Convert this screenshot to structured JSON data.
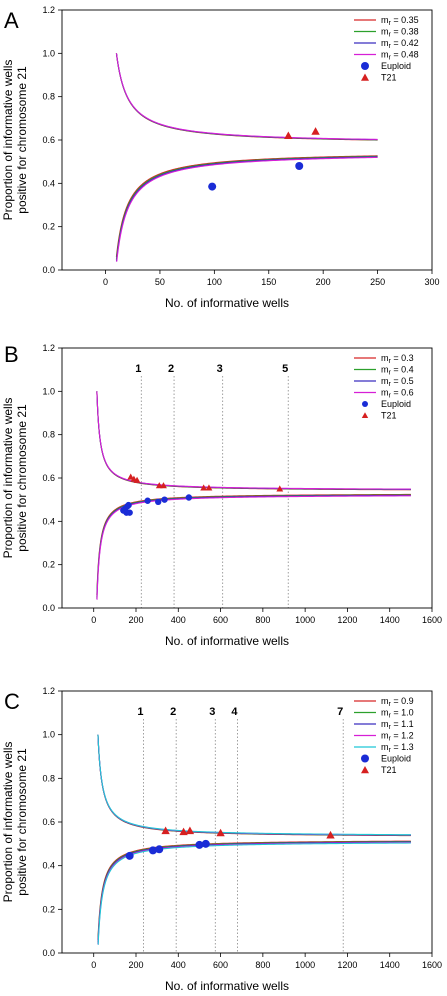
{
  "figure": {
    "background": "#ffffff"
  },
  "chart_data": [
    {
      "panel_label": "A",
      "type": "line",
      "xlabel": "No. of informative wells",
      "ylabel_lines": [
        "Proportion of informative wells",
        "positive for chromosome 21"
      ],
      "xlim": [
        -40,
        300
      ],
      "ylim": [
        0.0,
        1.2
      ],
      "xticks": [
        0,
        50,
        100,
        150,
        200,
        250,
        300
      ],
      "yticks": [
        0.0,
        0.2,
        0.4,
        0.6,
        0.8,
        1.0,
        1.2
      ],
      "curve_x_range": [
        10,
        250
      ],
      "series": [
        {
          "name_main": "m",
          "name_sub": "r",
          "name_rest": " = 0.35",
          "color": "#d62728",
          "mf": 0.35
        },
        {
          "name_main": "m",
          "name_sub": "r",
          "name_rest": " = 0.38",
          "color": "#2ca02c",
          "mf": 0.38
        },
        {
          "name_main": "m",
          "name_sub": "r",
          "name_rest": " = 0.42",
          "color": "#3b2fbf",
          "mf": 0.42
        },
        {
          "name_main": "m",
          "name_sub": "r",
          "name_rest": " = 0.48",
          "color": "#d61fd6",
          "mf": 0.48
        }
      ],
      "euploid_label": "Euploid",
      "t21_label": "T21",
      "euploid_points": [
        [
          98,
          0.385
        ],
        [
          178,
          0.48
        ]
      ],
      "t21_points": [
        [
          168,
          0.62
        ],
        [
          193,
          0.64
        ]
      ],
      "vlines": []
    },
    {
      "panel_label": "B",
      "type": "line",
      "xlabel": "No. of informative wells",
      "ylabel_lines": [
        "Proportion of informative wells",
        "positive for chromosome 21"
      ],
      "xlim": [
        -150,
        1600
      ],
      "ylim": [
        0.0,
        1.2
      ],
      "xticks": [
        0,
        200,
        400,
        600,
        800,
        1000,
        1200,
        1400,
        1600
      ],
      "yticks": [
        0.0,
        0.2,
        0.4,
        0.6,
        0.8,
        1.0,
        1.2
      ],
      "curve_x_range": [
        15,
        1500
      ],
      "series": [
        {
          "name_main": "m",
          "name_sub": "r",
          "name_rest": " = 0.3",
          "color": "#d62728",
          "mf": 0.3
        },
        {
          "name_main": "m",
          "name_sub": "r",
          "name_rest": " = 0.4",
          "color": "#2ca02c",
          "mf": 0.4
        },
        {
          "name_main": "m",
          "name_sub": "r",
          "name_rest": " = 0.5",
          "color": "#3b2fbf",
          "mf": 0.5
        },
        {
          "name_main": "m",
          "name_sub": "r",
          "name_rest": " = 0.6",
          "color": "#d61fd6",
          "mf": 0.6
        }
      ],
      "euploid_label": "Euploid",
      "t21_label": "T21",
      "euploid_points": [
        [
          140,
          0.45
        ],
        [
          150,
          0.46
        ],
        [
          155,
          0.44
        ],
        [
          160,
          0.47
        ],
        [
          165,
          0.475
        ],
        [
          170,
          0.44
        ],
        [
          255,
          0.495
        ],
        [
          305,
          0.49
        ],
        [
          335,
          0.5
        ],
        [
          450,
          0.51
        ]
      ],
      "t21_points": [
        [
          175,
          0.605
        ],
        [
          190,
          0.595
        ],
        [
          205,
          0.59
        ],
        [
          310,
          0.565
        ],
        [
          330,
          0.565
        ],
        [
          520,
          0.555
        ],
        [
          545,
          0.555
        ],
        [
          880,
          0.55
        ]
      ],
      "vlines": [
        {
          "x": 225,
          "label": "1"
        },
        {
          "x": 380,
          "label": "2"
        },
        {
          "x": 610,
          "label": "3"
        },
        {
          "x": 920,
          "label": "5"
        }
      ]
    },
    {
      "panel_label": "C",
      "type": "line",
      "xlabel": "No. of informative wells",
      "ylabel_lines": [
        "Proportion of informative wells",
        "positive for chromosome 21"
      ],
      "xlim": [
        -150,
        1600
      ],
      "ylim": [
        0.0,
        1.2
      ],
      "xticks": [
        0,
        200,
        400,
        600,
        800,
        1000,
        1200,
        1400,
        1600
      ],
      "yticks": [
        0.0,
        0.2,
        0.4,
        0.6,
        0.8,
        1.0,
        1.2
      ],
      "curve_x_range": [
        20,
        1500
      ],
      "series": [
        {
          "name_main": "m",
          "name_sub": "r",
          "name_rest": " = 0.9",
          "color": "#d62728",
          "mf": 0.9
        },
        {
          "name_main": "m",
          "name_sub": "r",
          "name_rest": " = 1.0",
          "color": "#2ca02c",
          "mf": 1.0
        },
        {
          "name_main": "m",
          "name_sub": "r",
          "name_rest": " = 1.1",
          "color": "#3b2fbf",
          "mf": 1.1
        },
        {
          "name_main": "m",
          "name_sub": "r",
          "name_rest": " = 1.2",
          "color": "#d61fd6",
          "mf": 1.2
        },
        {
          "name_main": "m",
          "name_sub": "r",
          "name_rest": " = 1.3",
          "color": "#1fc7d6",
          "mf": 1.3
        }
      ],
      "euploid_label": "Euploid",
      "t21_label": "T21",
      "euploid_points": [
        [
          170,
          0.445
        ],
        [
          280,
          0.47
        ],
        [
          310,
          0.475
        ],
        [
          500,
          0.495
        ],
        [
          530,
          0.5
        ]
      ],
      "t21_points": [
        [
          340,
          0.56
        ],
        [
          425,
          0.555
        ],
        [
          455,
          0.56
        ],
        [
          600,
          0.55
        ],
        [
          1120,
          0.54
        ]
      ],
      "vlines": [
        {
          "x": 235,
          "label": "1"
        },
        {
          "x": 390,
          "label": "2"
        },
        {
          "x": 575,
          "label": "3"
        },
        {
          "x": 680,
          "label": "4"
        },
        {
          "x": 1180,
          "label": "7"
        }
      ]
    }
  ]
}
